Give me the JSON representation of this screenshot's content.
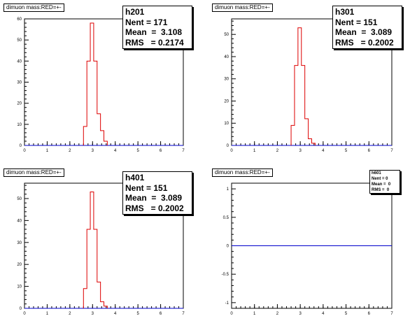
{
  "canvas": {
    "background": "#ffffff",
    "line_color": "#dd0000",
    "axis_color": "#0000cc"
  },
  "pads": [
    {
      "id": "p1",
      "title": "dimuon mass:RED=+-",
      "stats": {
        "name": "h201",
        "nent_label": "Nent = 171",
        "mean_label": "Mean  =  3.108",
        "rms_label": "RMS   = 0.2174"
      }
    },
    {
      "id": "p2",
      "title": "dimuon mass:RED=+-",
      "stats": {
        "name": "h301",
        "nent_label": "Nent = 151",
        "mean_label": "Mean  =  3.089",
        "rms_label": "RMS   = 0.2002"
      }
    },
    {
      "id": "p3",
      "title": "dimuon mass:RED=+-",
      "stats": {
        "name": "h401",
        "nent_label": "Nent = 151",
        "mean_label": "Mean  =  3.089",
        "rms_label": "RMS   = 0.2002"
      }
    },
    {
      "id": "p4",
      "title": "dimuon mass:RED=+-",
      "stats": {
        "name": "h601",
        "nent_label": "Nent = 0",
        "mean_label": "Mean =  0",
        "rms_label": "RMS =  0"
      }
    }
  ],
  "chart_data": [
    {
      "type": "bar",
      "title": "dimuon mass:RED=+-",
      "xlim": [
        0,
        7
      ],
      "ylim": [
        0,
        60
      ],
      "xticks": [
        0,
        1,
        2,
        3,
        4,
        5,
        6,
        7
      ],
      "yticks": [
        0,
        10,
        20,
        30,
        40,
        50,
        60
      ],
      "bin_edges": [
        2.6,
        2.75,
        2.9,
        3.05,
        3.2,
        3.35,
        3.5,
        3.65
      ],
      "values": [
        9,
        40,
        58,
        40,
        15,
        7,
        2
      ],
      "series": [
        {
          "name": "h201",
          "entries": 171,
          "mean": 3.108,
          "rms": 0.2174
        }
      ]
    },
    {
      "type": "bar",
      "title": "dimuon mass:RED=+-",
      "xlim": [
        0,
        7
      ],
      "ylim": [
        0,
        57
      ],
      "xticks": [
        0,
        1,
        2,
        3,
        4,
        5,
        6,
        7
      ],
      "yticks": [
        0,
        10,
        20,
        30,
        40,
        50
      ],
      "bin_edges": [
        2.6,
        2.75,
        2.9,
        3.05,
        3.2,
        3.35,
        3.5,
        3.65
      ],
      "values": [
        9,
        36,
        53,
        36,
        12,
        3,
        1
      ],
      "series": [
        {
          "name": "h301",
          "entries": 151,
          "mean": 3.089,
          "rms": 0.2002
        }
      ]
    },
    {
      "type": "bar",
      "title": "dimuon mass:RED=+-",
      "xlim": [
        0,
        7
      ],
      "ylim": [
        0,
        57
      ],
      "xticks": [
        0,
        1,
        2,
        3,
        4,
        5,
        6,
        7
      ],
      "yticks": [
        0,
        10,
        20,
        30,
        40,
        50
      ],
      "bin_edges": [
        2.6,
        2.75,
        2.9,
        3.05,
        3.2,
        3.35,
        3.5,
        3.65
      ],
      "values": [
        9,
        36,
        53,
        36,
        12,
        3,
        1
      ],
      "series": [
        {
          "name": "h401",
          "entries": 151,
          "mean": 3.089,
          "rms": 0.2002
        }
      ]
    },
    {
      "type": "bar",
      "title": "dimuon mass:RED=+-",
      "xlim": [
        0,
        7
      ],
      "ylim": [
        -1.1,
        1.1
      ],
      "xticks": [
        0,
        1,
        2,
        3,
        4,
        5,
        6,
        7
      ],
      "yticks": [
        -1,
        -0.5,
        0,
        0.5,
        1
      ],
      "bin_edges": [],
      "values": [],
      "series": [
        {
          "name": "h601",
          "entries": 0,
          "mean": 0,
          "rms": 0
        }
      ]
    }
  ]
}
